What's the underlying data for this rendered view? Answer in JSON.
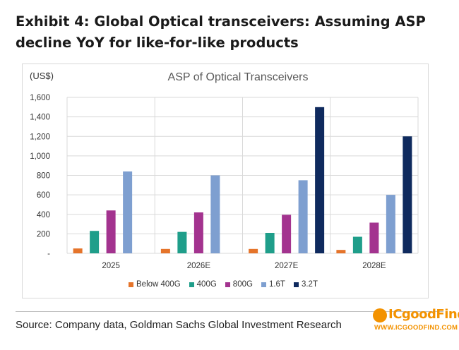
{
  "exhibit": {
    "title": "Exhibit 4: Global Optical transceivers: Assuming ASP decline YoY for like-for-like products"
  },
  "source": "Source: Company data, Goldman Sachs Global Investment Research",
  "watermark": {
    "name": "ICgoodFind",
    "url": "WWW.ICGOODFIND.COM"
  },
  "chart_data": {
    "type": "bar",
    "title": "ASP of Optical Transceivers",
    "unit_label": "(US$)",
    "categories": [
      "2025",
      "2026E",
      "2027E",
      "2028E"
    ],
    "ylim": [
      0,
      1600
    ],
    "yticks": [
      "-",
      "200",
      "400",
      "600",
      "800",
      "1,000",
      "1,200",
      "1,400",
      "1,600"
    ],
    "grid": true,
    "legend_position": "bottom",
    "series": [
      {
        "name": "Below 400G",
        "color": "#e5742a",
        "values": [
          50,
          45,
          45,
          35
        ]
      },
      {
        "name": "400G",
        "color": "#1f9e8a",
        "values": [
          230,
          220,
          210,
          170
        ]
      },
      {
        "name": "800G",
        "color": "#a3338f",
        "values": [
          440,
          420,
          395,
          315
        ]
      },
      {
        "name": "1.6T",
        "color": "#7e9fd0",
        "values": [
          840,
          800,
          750,
          600
        ]
      },
      {
        "name": "3.2T",
        "color": "#0f2a5e",
        "values": [
          null,
          null,
          1500,
          1200
        ]
      }
    ]
  }
}
